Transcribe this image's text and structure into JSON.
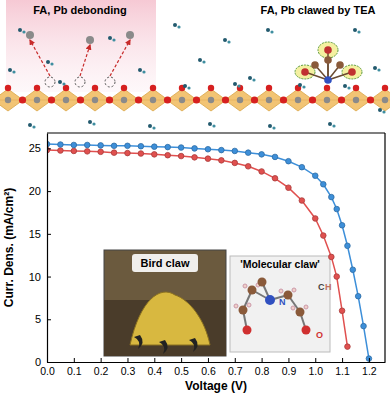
{
  "chart_data": {
    "type": "line",
    "x_label": "Voltage (V)",
    "y_label": "Curr. Dens. (mA/cm²)",
    "annotations": [
      "FA, Pb debonding",
      "FA, Pb clawed by TEA",
      "Bird claw",
      "'Molecular claw'",
      "N",
      "C",
      "H",
      "O"
    ],
    "x": [
      0,
      0.05,
      0.1,
      0.15,
      0.2,
      0.25,
      0.3,
      0.35,
      0.4,
      0.45,
      0.5,
      0.55,
      0.6,
      0.65,
      0.7,
      0.75,
      0.8,
      0.85,
      0.9,
      0.95,
      1.0,
      1.03,
      1.06,
      1.08,
      1.1,
      1.12,
      1.14,
      1.16,
      1.18,
      1.2
    ],
    "series": [
      {
        "color": "#e0504f",
        "marker": "circle",
        "values": [
          24.8,
          24.75,
          24.7,
          24.65,
          24.6,
          24.5,
          24.45,
          24.4,
          24.3,
          24.2,
          24.1,
          23.95,
          23.8,
          23.6,
          23.3,
          22.9,
          22.3,
          21.5,
          20.4,
          18.9,
          16.8,
          14.8,
          12.3,
          10.0,
          6.0,
          1.8,
          null,
          null,
          null,
          null
        ]
      },
      {
        "color": "#3d8fd9",
        "marker": "circle",
        "values": [
          25.5,
          25.45,
          25.4,
          25.4,
          25.35,
          25.3,
          25.3,
          25.25,
          25.2,
          25.15,
          25.1,
          25.0,
          24.9,
          24.8,
          24.7,
          24.5,
          24.3,
          24.0,
          23.5,
          22.8,
          21.8,
          20.8,
          19.3,
          17.9,
          16.0,
          13.6,
          10.8,
          7.7,
          4.2,
          0.4
        ]
      }
    ],
    "xlim": [
      0,
      1.26
    ],
    "ylim": [
      0,
      26.8
    ],
    "xticks": [
      {
        "value": 0,
        "label": "0.0"
      },
      0.1,
      0.2,
      0.3,
      0.4,
      0.5,
      0.6,
      0.7,
      0.8,
      0.9,
      {
        "value": 1,
        "label": "1.0"
      },
      1.1,
      1.2
    ],
    "yticks": [
      0,
      5,
      10,
      15,
      20,
      25
    ],
    "grid": false
  }
}
